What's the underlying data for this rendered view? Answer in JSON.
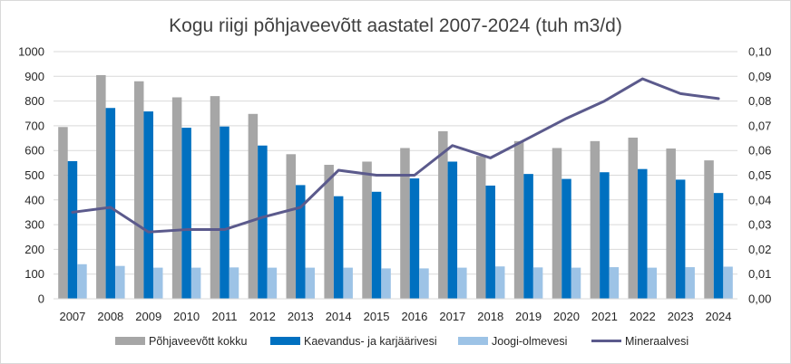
{
  "chart_data": {
    "type": "bar",
    "title": "Kogu riigi põhjaveevõtt aastatel 2007-2024 (tuh m3/d)",
    "categories": [
      "2007",
      "2008",
      "2009",
      "2010",
      "2011",
      "2012",
      "2013",
      "2014",
      "2015",
      "2016",
      "2017",
      "2018",
      "2019",
      "2020",
      "2021",
      "2022",
      "2023",
      "2024"
    ],
    "y_left": {
      "lim": [
        0,
        1000
      ],
      "ticks": [
        "0",
        "100",
        "200",
        "300",
        "400",
        "500",
        "600",
        "700",
        "800",
        "900",
        "1000"
      ]
    },
    "y_right": {
      "lim": [
        0,
        0.1
      ],
      "ticks": [
        "0,00",
        "0,01",
        "0,02",
        "0,03",
        "0,04",
        "0,05",
        "0,06",
        "0,07",
        "0,08",
        "0,09",
        "0,10"
      ]
    },
    "grid": true,
    "legend_position": "bottom",
    "series": [
      {
        "name": "Põhjaveevõtt kokku",
        "kind": "bar",
        "axis": "left",
        "color": "#a6a6a6",
        "values": [
          695,
          905,
          880,
          815,
          820,
          748,
          585,
          542,
          555,
          610,
          678,
          578,
          638,
          610,
          638,
          652,
          608,
          560
        ]
      },
      {
        "name": "Kaevandus- ja karjäärivesi",
        "kind": "bar",
        "axis": "left",
        "color": "#0070c0",
        "values": [
          557,
          772,
          758,
          692,
          697,
          620,
          460,
          415,
          433,
          487,
          555,
          458,
          505,
          485,
          512,
          525,
          482,
          428
        ]
      },
      {
        "name": "Joogi-olmevesi",
        "kind": "bar",
        "axis": "left",
        "color": "#9dc3e6",
        "values": [
          140,
          133,
          126,
          126,
          127,
          126,
          126,
          126,
          123,
          123,
          126,
          131,
          127,
          126,
          128,
          126,
          128,
          130
        ]
      },
      {
        "name": "Mineraalvesi",
        "kind": "line",
        "axis": "right",
        "color": "#5b5a8c",
        "values": [
          0.035,
          0.037,
          0.027,
          0.028,
          0.028,
          0.033,
          0.037,
          0.052,
          0.05,
          0.05,
          0.062,
          0.057,
          0.065,
          0.073,
          0.08,
          0.089,
          0.083,
          0.081
        ]
      }
    ]
  }
}
